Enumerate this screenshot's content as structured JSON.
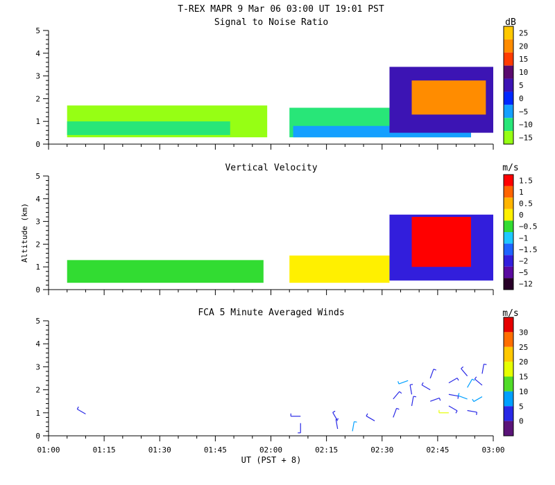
{
  "figure": {
    "title": "T-REX   MAPR   9 Mar 06   03:00 UT   19:01   PST",
    "xlabel": "UT  (PST + 8)",
    "ylabel": "Altitude (km)"
  },
  "chart_data": [
    {
      "type": "heatmap",
      "title": "Signal to Noise Ratio",
      "unit": "dB",
      "xlim": [
        "01:00",
        "03:00"
      ],
      "x_ticks": [
        "01:00",
        "01:15",
        "01:30",
        "01:45",
        "02:00",
        "02:15",
        "02:30",
        "02:45",
        "03:00"
      ],
      "ylim": [
        0,
        5
      ],
      "y_ticks": [
        0,
        1,
        2,
        3,
        4,
        5
      ],
      "colorbar": {
        "labels": [
          "25",
          "20",
          "15",
          "10",
          "5",
          "0",
          "−5",
          "−10",
          "−15"
        ],
        "colors": [
          "#ffc800",
          "#ff8c00",
          "#ff3c00",
          "#5a0a6e",
          "#3c14b4",
          "#0028ff",
          "#14a0ff",
          "#28e678",
          "#96ff14"
        ]
      },
      "regions": [
        {
          "x": [
            "01:05",
            "01:59"
          ],
          "y": [
            0.3,
            1.7
          ],
          "level": "−15 to −10",
          "color": "#96ff14"
        },
        {
          "x": [
            "01:05",
            "01:49"
          ],
          "y": [
            0.4,
            1.0
          ],
          "level": "−10 to −5",
          "color": "#28e678"
        },
        {
          "x": [
            "02:05",
            "02:54"
          ],
          "y": [
            0.3,
            1.6
          ],
          "level": "−10 to −5",
          "color": "#28e678"
        },
        {
          "x": [
            "02:06",
            "02:54"
          ],
          "y": [
            0.3,
            0.8
          ],
          "level": "−5 to 0",
          "color": "#14a0ff"
        },
        {
          "x": [
            "02:32",
            "03:00"
          ],
          "y": [
            0.5,
            3.4
          ],
          "level": "0 to 10",
          "color": "#3c14b4"
        },
        {
          "x": [
            "02:38",
            "02:58"
          ],
          "y": [
            1.3,
            2.8
          ],
          "level": "15 to 25",
          "color": "#ff8c00"
        }
      ]
    },
    {
      "type": "heatmap",
      "title": "Vertical Velocity",
      "unit": "m/s",
      "xlim": [
        "01:00",
        "03:00"
      ],
      "x_ticks": [
        "01:00",
        "01:15",
        "01:30",
        "01:45",
        "02:00",
        "02:15",
        "02:30",
        "02:45",
        "03:00"
      ],
      "ylim": [
        0,
        5
      ],
      "y_ticks": [
        0,
        1,
        2,
        3,
        4,
        5
      ],
      "colorbar": {
        "labels": [
          "1.5",
          "1",
          "0.5",
          "0",
          "−0.5",
          "−1",
          "−1.5",
          "−2",
          "−5",
          "−12"
        ],
        "colors": [
          "#ff0000",
          "#ff6400",
          "#ffb400",
          "#fff000",
          "#32dc32",
          "#1ec8ff",
          "#1e64ff",
          "#321edc",
          "#5a0aa0",
          "#280028"
        ]
      },
      "regions": [
        {
          "x": [
            "01:05",
            "01:58"
          ],
          "y": [
            0.3,
            1.3
          ],
          "level": "−0.5 to 0.5",
          "color": "#32dc32"
        },
        {
          "x": [
            "02:05",
            "02:32"
          ],
          "y": [
            0.3,
            1.5
          ],
          "level": "0 to 0.5",
          "color": "#fff000"
        },
        {
          "x": [
            "02:32",
            "03:00"
          ],
          "y": [
            0.4,
            3.3
          ],
          "level": "−2 to −1.5",
          "color": "#321edc"
        },
        {
          "x": [
            "02:38",
            "02:54"
          ],
          "y": [
            1.0,
            3.2
          ],
          "level": "0.5 to 1.5",
          "color": "#ff0000"
        }
      ]
    },
    {
      "type": "scatter",
      "title": "FCA 5 Minute Averaged Winds",
      "unit": "m/s",
      "xlim": [
        "01:00",
        "03:00"
      ],
      "x_ticks": [
        "01:00",
        "01:15",
        "01:30",
        "01:45",
        "02:00",
        "02:15",
        "02:30",
        "02:45",
        "03:00"
      ],
      "ylim": [
        0,
        5
      ],
      "y_ticks": [
        0,
        1,
        2,
        3,
        4,
        5
      ],
      "colorbar": {
        "labels": [
          "30",
          "25",
          "20",
          "15",
          "10",
          "5",
          "0"
        ],
        "colors": [
          "#e60000",
          "#ff6e00",
          "#ffc800",
          "#e6ff00",
          "#50dc28",
          "#00a0ff",
          "#2828e6",
          "#5a1478"
        ]
      },
      "points": [
        {
          "x": "01:10",
          "y": 0.95,
          "dir": 300,
          "speed": 7
        },
        {
          "x": "02:08",
          "y": 0.85,
          "dir": 270,
          "speed": 6
        },
        {
          "x": "02:08",
          "y": 0.55,
          "dir": 180,
          "speed": 6
        },
        {
          "x": "02:18",
          "y": 0.65,
          "dir": 330,
          "speed": 7
        },
        {
          "x": "02:18",
          "y": 0.3,
          "dir": 350,
          "speed": 7
        },
        {
          "x": "02:22",
          "y": 0.2,
          "dir": 10,
          "speed": 12
        },
        {
          "x": "02:28",
          "y": 0.65,
          "dir": 300,
          "speed": 6
        },
        {
          "x": "02:33",
          "y": 1.6,
          "dir": 40,
          "speed": 6
        },
        {
          "x": "02:33",
          "y": 0.8,
          "dir": 20,
          "speed": 5
        },
        {
          "x": "02:37",
          "y": 2.4,
          "dir": 250,
          "speed": 14
        },
        {
          "x": "02:38",
          "y": 1.8,
          "dir": 350,
          "speed": 6
        },
        {
          "x": "02:38",
          "y": 1.3,
          "dir": 10,
          "speed": 5
        },
        {
          "x": "02:43",
          "y": 2.5,
          "dir": 20,
          "speed": 5
        },
        {
          "x": "02:43",
          "y": 2.0,
          "dir": 300,
          "speed": 6
        },
        {
          "x": "02:43",
          "y": 1.5,
          "dir": 70,
          "speed": 6
        },
        {
          "x": "02:48",
          "y": 2.3,
          "dir": 60,
          "speed": 5
        },
        {
          "x": "02:48",
          "y": 1.8,
          "dir": 100,
          "speed": 5
        },
        {
          "x": "02:48",
          "y": 1.3,
          "dir": 120,
          "speed": 5
        },
        {
          "x": "02:48",
          "y": 1.0,
          "dir": 270,
          "speed": 24
        },
        {
          "x": "02:53",
          "y": 2.6,
          "dir": 320,
          "speed": 5
        },
        {
          "x": "02:53",
          "y": 2.1,
          "dir": 30,
          "speed": 12
        },
        {
          "x": "02:53",
          "y": 1.6,
          "dir": 290,
          "speed": 10
        },
        {
          "x": "02:53",
          "y": 1.1,
          "dir": 100,
          "speed": 5
        },
        {
          "x": "02:57",
          "y": 2.7,
          "dir": 10,
          "speed": 5
        },
        {
          "x": "02:57",
          "y": 2.2,
          "dir": 310,
          "speed": 6
        },
        {
          "x": "02:57",
          "y": 1.7,
          "dir": 240,
          "speed": 14
        }
      ]
    }
  ]
}
